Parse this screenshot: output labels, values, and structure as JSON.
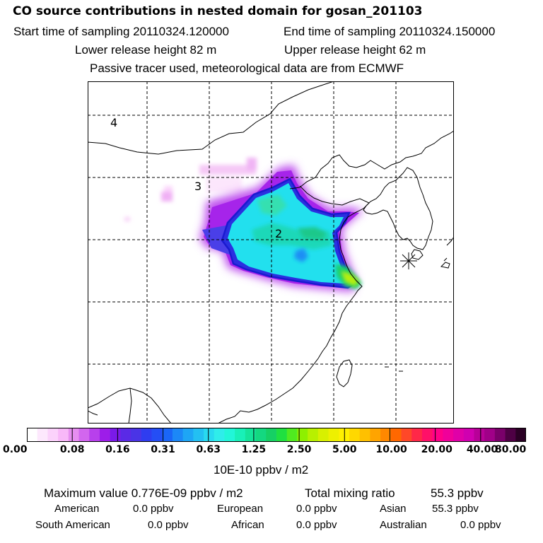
{
  "header": {
    "title": "CO  source contributions in nested domain for gosan_201103",
    "start_label": "Start time of sampling 20110324.120000",
    "end_label": "End time of sampling 20110324.150000",
    "lower_height": "Lower release height   82 m",
    "upper_height": "Upper release height   62 m",
    "note": "Passive tracer used, meteorological data are from ECMWF"
  },
  "map": {
    "region_labels": [
      "4",
      "3",
      "2"
    ],
    "receptor_marker": "receptor-star-icon"
  },
  "colorbar": {
    "ticks": [
      "0.00",
      "0.08",
      "0.16",
      "0.31",
      "0.63",
      "1.25",
      "2.50",
      "5.00",
      "10.00",
      "20.00",
      "40.00",
      "80.00"
    ],
    "unit": "10E-10 ppbv / m2",
    "colors": [
      "#ffffff",
      "#fde8fd",
      "#fbd2fb",
      "#f8b8f8",
      "#e68ef0",
      "#d266ee",
      "#b840ec",
      "#9d1de9",
      "#7a1ae8",
      "#5a2ae6",
      "#4a34e6",
      "#2f3df0",
      "#244ef5",
      "#1a66f7",
      "#1c88f7",
      "#1ea6f5",
      "#23c0f2",
      "#28daf0",
      "#2fedea",
      "#22f6d8",
      "#19f0b8",
      "#15e49a",
      "#14d880",
      "#16d064",
      "#1fe040",
      "#50ea20",
      "#8ef000",
      "#b8f000",
      "#d8f000",
      "#eef000",
      "#fff000",
      "#ffd800",
      "#ffc000",
      "#ffa400",
      "#ff8800",
      "#ff6800",
      "#ff4828",
      "#ff2848",
      "#ff1068",
      "#ff0088",
      "#f0009a",
      "#e000a8",
      "#d000b0",
      "#b80098",
      "#a00088",
      "#7a006a",
      "#4e0044",
      "#2a0024"
    ]
  },
  "summary": {
    "max_label": "Maximum value  0.776E-09 ppbv / m2",
    "total_label": "Total mixing ratio",
    "total_value": "55.3 ppbv",
    "rows": [
      [
        [
          "American",
          "0.0 ppbv"
        ],
        [
          "European",
          "0.0 ppbv"
        ],
        [
          "Asian",
          "55.3 ppbv"
        ]
      ],
      [
        [
          "South American",
          "0.0 ppbv"
        ],
        [
          "African",
          "0.0 ppbv"
        ],
        [
          "Australian",
          "0.0 ppbv"
        ]
      ]
    ]
  }
}
